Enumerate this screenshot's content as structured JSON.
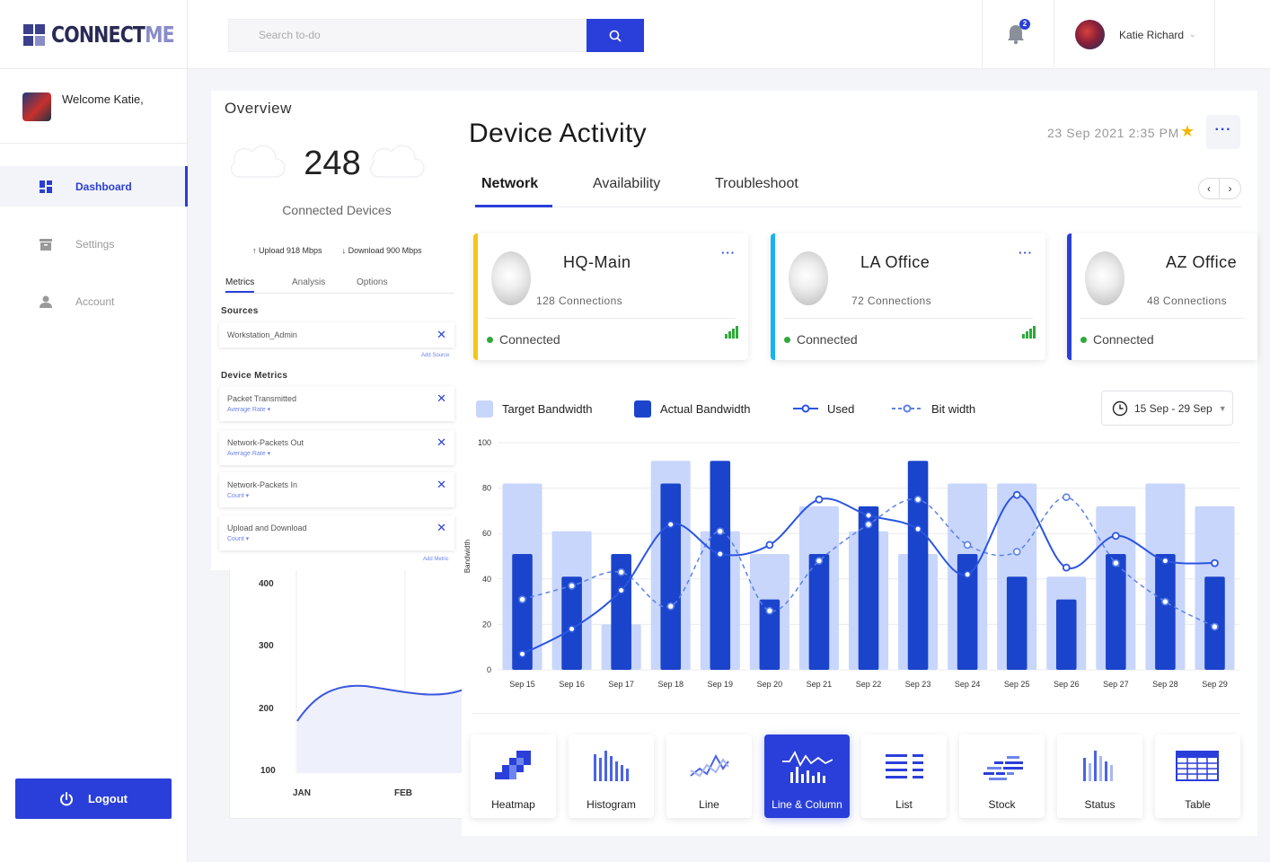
{
  "app": {
    "logo_main": "CONNECT",
    "logo_accent": "ME",
    "welcome": "Welcome Katie,",
    "logout_label": "Logout"
  },
  "sidebar": {
    "items": [
      {
        "label": "Dashboard",
        "icon": "dashboard-icon",
        "active": true
      },
      {
        "label": "Settings",
        "icon": "archive-icon",
        "active": false
      },
      {
        "label": "Account",
        "icon": "user-icon",
        "active": false
      }
    ]
  },
  "topbar": {
    "search_placeholder": "Search to-do",
    "notification_count": "2",
    "user_name": "Katie Richard"
  },
  "overview": {
    "title": "Overview",
    "count": "248",
    "caption": "Connected Devices",
    "upload": "Upload 918 Mbps",
    "download": "Download 900 Mbps",
    "tabs": [
      "Metrics",
      "Analysis",
      "Options"
    ],
    "sources_title": "Sources",
    "source": "Workstation_Admin",
    "add_source": "Add Source",
    "metrics_title": "Device Metrics",
    "metrics": [
      {
        "label": "Packet Transmitted",
        "sub": "Average Rate ▾"
      },
      {
        "label": "Network-Packets Out",
        "sub": "Average Rate ▾"
      },
      {
        "label": "Network-Packets In",
        "sub": "Count ▾"
      },
      {
        "label": "Upload and Download",
        "sub": "Count ▾"
      }
    ],
    "add_metric": "Add Metric"
  },
  "background_chart": {
    "y_ticks": [
      "400",
      "300",
      "200",
      "100"
    ],
    "x_ticks": [
      "JAN",
      "FEB"
    ]
  },
  "main": {
    "title": "Device Activity",
    "date": "23 Sep  2021  2:35 PM",
    "tabs": [
      "Network",
      "Availability",
      "Troubleshoot"
    ],
    "devices": [
      {
        "name": "HQ-Main",
        "connections": "128  Connections",
        "status": "Connected",
        "color": "#f5c518"
      },
      {
        "name": "LA Office",
        "connections": "72  Connections",
        "status": "Connected",
        "color": "#19b3f0"
      },
      {
        "name": "AZ Office",
        "connections": "48  Connections",
        "status": "Connected",
        "color": "#2a3fd9"
      }
    ],
    "legend": {
      "target": "Target Bandwidth",
      "actual": "Actual Bandwidth",
      "used": "Used",
      "bitwidth": "Bit width"
    },
    "date_range": "15 Sep - 29 Sep",
    "chart_types": [
      {
        "label": "Heatmap",
        "icon": "heatmap-icon"
      },
      {
        "label": "Histogram",
        "icon": "histogram-icon"
      },
      {
        "label": "Line",
        "icon": "line-chart-icon"
      },
      {
        "label": "Line & Column",
        "icon": "line-column-icon",
        "active": true
      },
      {
        "label": "List",
        "icon": "list-icon"
      },
      {
        "label": "Stock",
        "icon": "stock-icon"
      },
      {
        "label": "Status",
        "icon": "status-icon"
      },
      {
        "label": "Table",
        "icon": "table-icon"
      }
    ]
  },
  "chart_data": {
    "type": "bar",
    "ylabel": "Bandwidth",
    "ylim": [
      0,
      100
    ],
    "y_ticks": [
      0,
      20,
      40,
      60,
      80,
      100
    ],
    "categories": [
      "Sep 15",
      "Sep 16",
      "Sep 17",
      "Sep 18",
      "Sep 19",
      "Sep 20",
      "Sep 21",
      "Sep 22",
      "Sep 23",
      "Sep 24",
      "Sep 25",
      "Sep 26",
      "Sep 27",
      "Sep 28",
      "Sep 29"
    ],
    "series": [
      {
        "name": "Target Bandwidth",
        "kind": "bar",
        "color": "#c9d6fb",
        "values": [
          82,
          61,
          20,
          92,
          61,
          51,
          72,
          61,
          51,
          82,
          82,
          41,
          72,
          82,
          72
        ]
      },
      {
        "name": "Actual Bandwidth",
        "kind": "bar",
        "color": "#1b44cc",
        "values": [
          51,
          41,
          51,
          82,
          92,
          31,
          51,
          72,
          92,
          51,
          41,
          31,
          51,
          51,
          41
        ]
      },
      {
        "name": "Used",
        "kind": "line",
        "color": "#2a55e0",
        "values": [
          7,
          18,
          35,
          64,
          51,
          55,
          75,
          68,
          62,
          42,
          77,
          45,
          59,
          48,
          47
        ]
      },
      {
        "name": "Bit width",
        "kind": "dashed-line",
        "color": "#5a82e8",
        "values": [
          31,
          37,
          43,
          28,
          61,
          26,
          48,
          64,
          75,
          55,
          52,
          76,
          47,
          30,
          19
        ]
      }
    ]
  }
}
